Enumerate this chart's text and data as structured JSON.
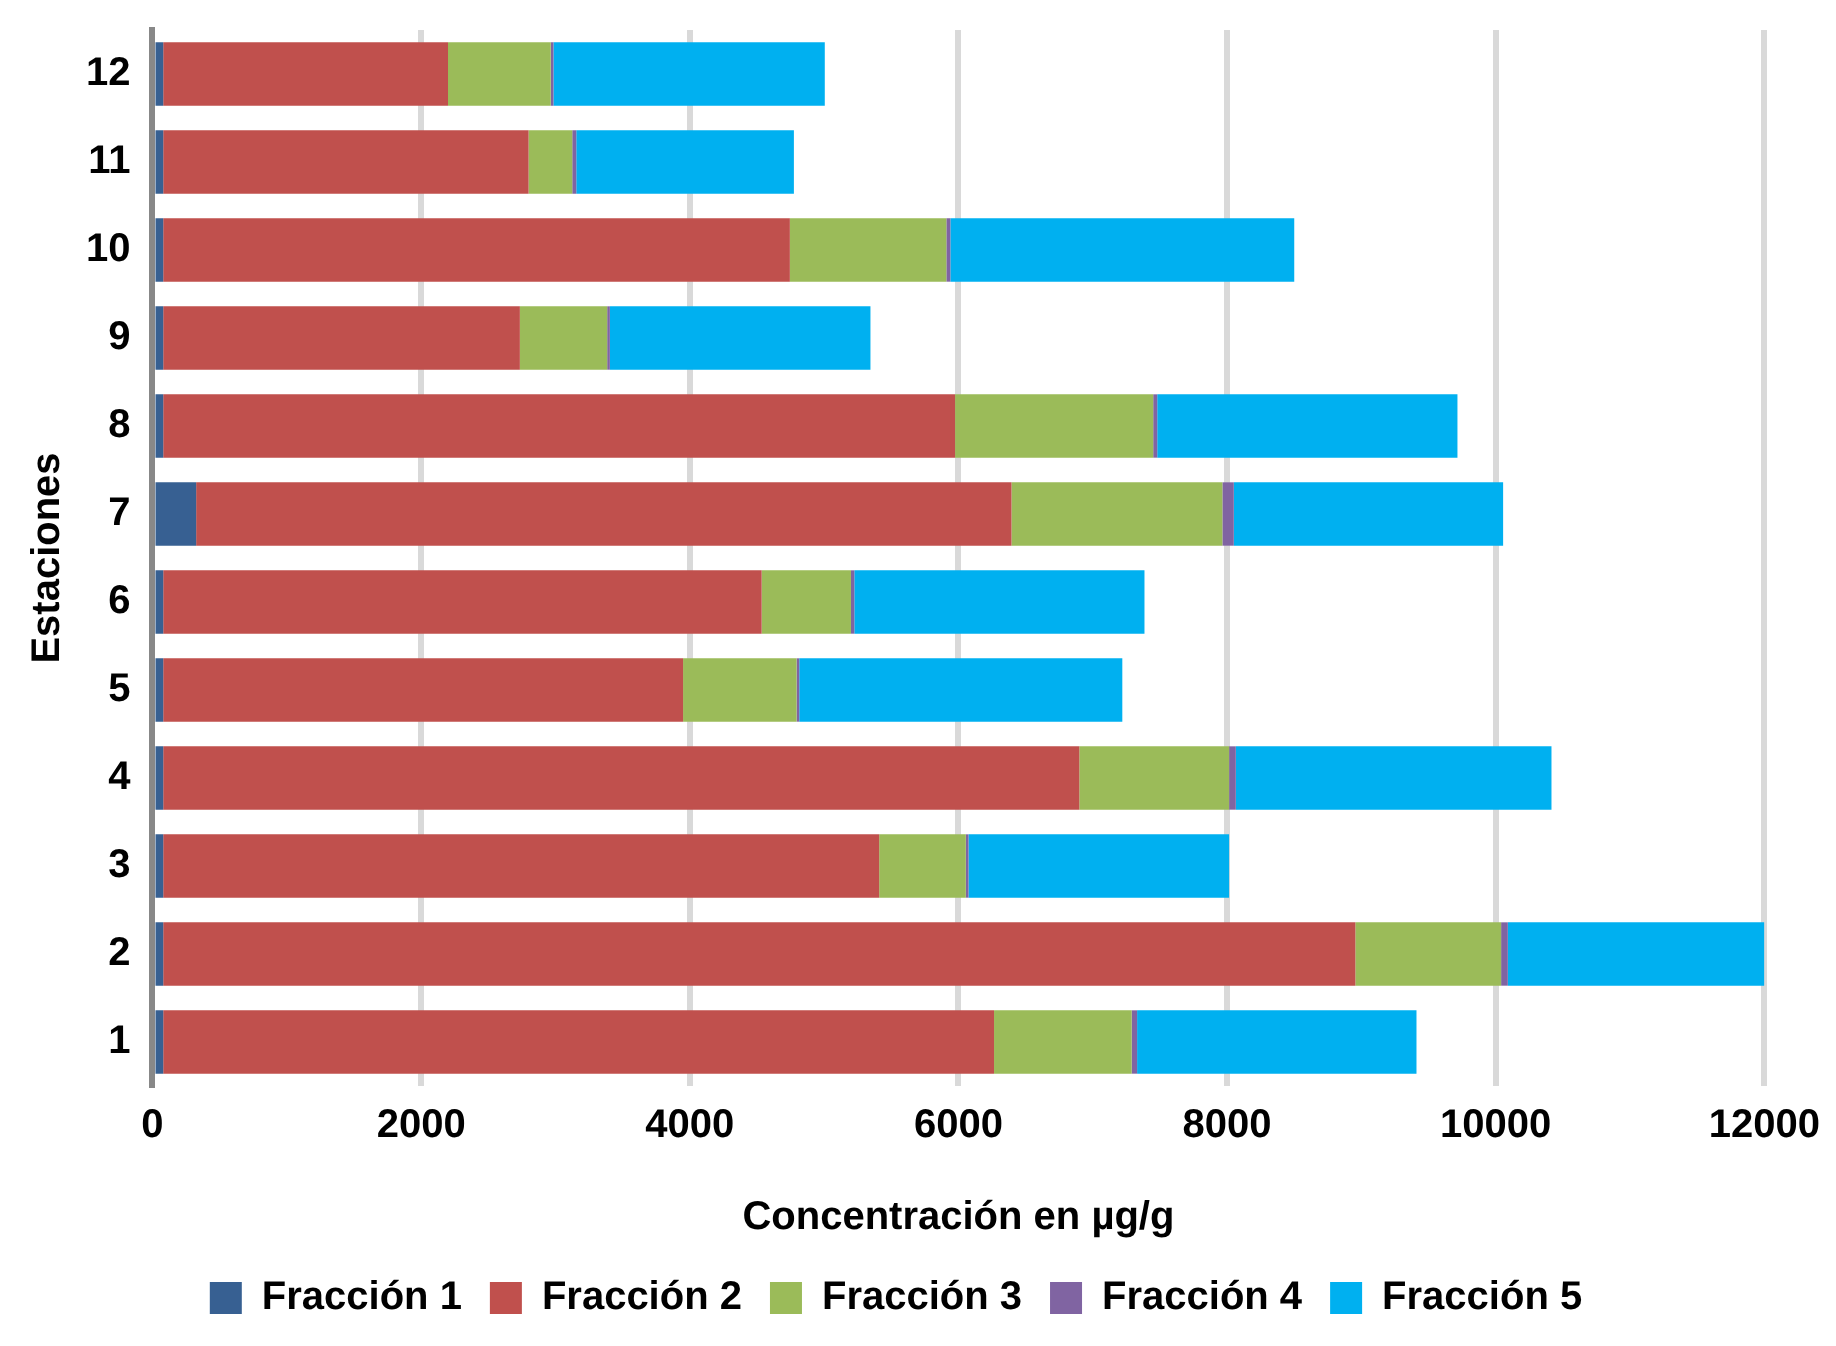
{
  "chart_data": {
    "type": "bar",
    "orientation": "horizontal",
    "stacked": true,
    "xlabel": "Concentración en µg/g",
    "ylabel": "Estaciones",
    "categories": [
      "12",
      "11",
      "10",
      "9",
      "8",
      "7",
      "6",
      "5",
      "4",
      "3",
      "2",
      "1"
    ],
    "series": [
      {
        "name": "Fracción 1",
        "color": "#376092",
        "values": [
          80,
          80,
          80,
          80,
          80,
          325,
          80,
          80,
          80,
          80,
          80,
          80
        ]
      },
      {
        "name": "Fracción 2",
        "color": "#c0504d",
        "values": [
          2120,
          2720,
          4665,
          2655,
          5895,
          6070,
          4455,
          3870,
          6820,
          5330,
          8875,
          6185
        ]
      },
      {
        "name": "Fracción 3",
        "color": "#9bbb59",
        "values": [
          765,
          325,
          1165,
          650,
          1475,
          1570,
          665,
          845,
          1115,
          645,
          1085,
          1025
        ]
      },
      {
        "name": "Fracción 4",
        "color": "#8064a2",
        "values": [
          20,
          30,
          30,
          20,
          30,
          85,
          25,
          20,
          50,
          20,
          50,
          40
        ]
      },
      {
        "name": "Fracción 5",
        "color": "#00b0f0",
        "values": [
          2020,
          1620,
          2560,
          1940,
          2235,
          2005,
          2160,
          2405,
          2350,
          1940,
          1910,
          2080
        ]
      }
    ],
    "xlim": [
      0,
      12000
    ],
    "xticks": [
      0,
      2000,
      4000,
      6000,
      8000,
      10000,
      12000
    ],
    "grid": "x",
    "legend": "bottom"
  }
}
